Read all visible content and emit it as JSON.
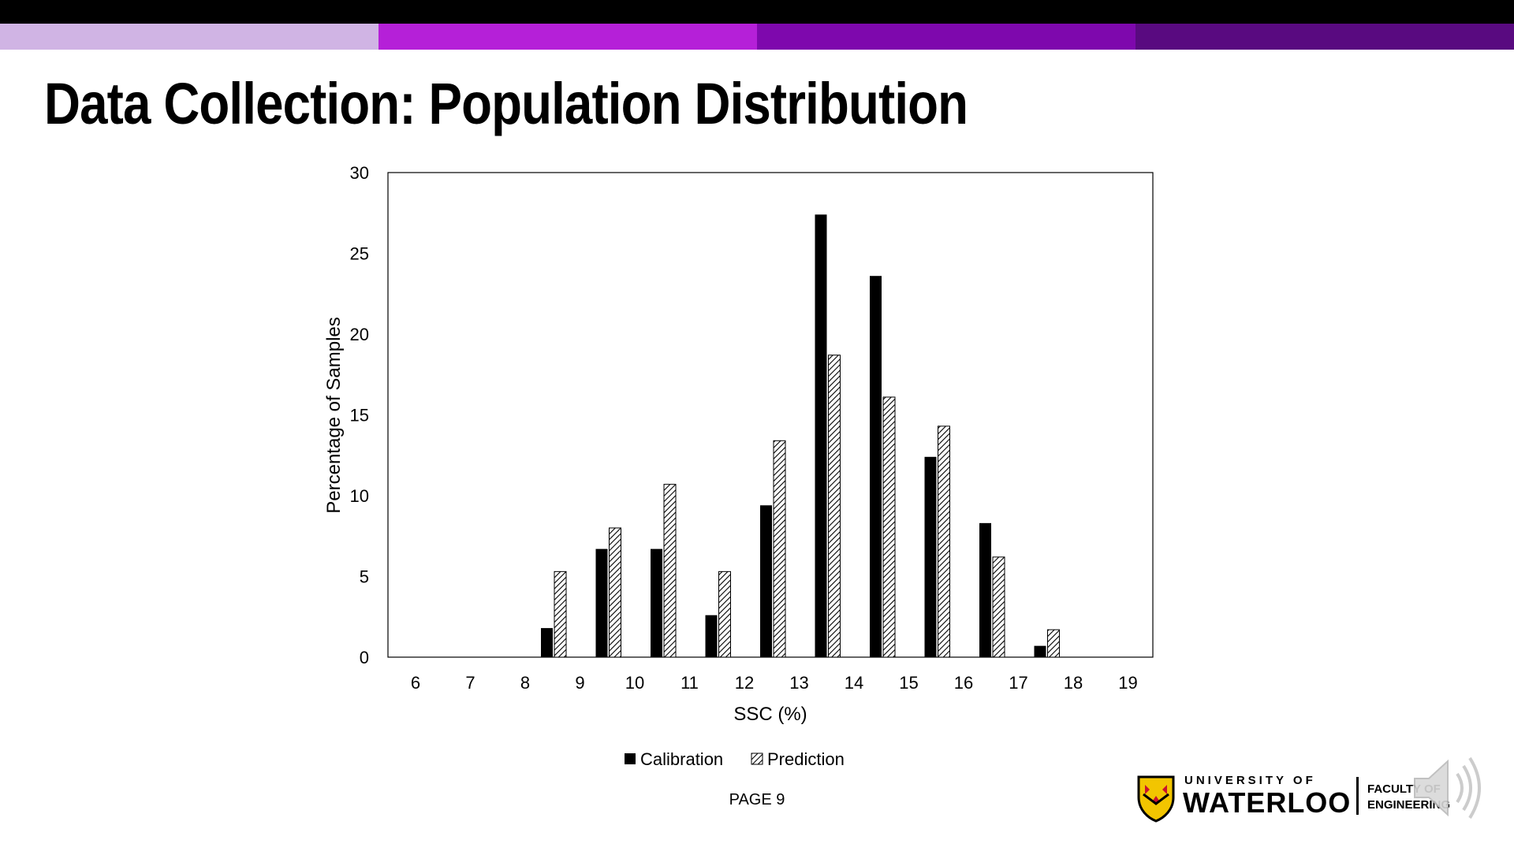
{
  "slide": {
    "title": "Data Collection: Population Distribution",
    "page_label": "PAGE  9",
    "stripe_colors": [
      "#d0b4e4",
      "#b520d8",
      "#7e08ad",
      "#590a80"
    ]
  },
  "logo": {
    "university_of": "UNIVERSITY OF",
    "university_name": "WATERLOO",
    "faculty_line1": "FACULTY OF",
    "faculty_line2": "ENGINEERING"
  },
  "icons": [
    "waterloo-crest-icon",
    "speaker-icon"
  ],
  "chart_data": {
    "type": "bar",
    "xlabel": "SSC (%)",
    "ylabel": "Percentage of Samples",
    "categories": [
      "6",
      "7",
      "8",
      "9",
      "10",
      "11",
      "12",
      "13",
      "14",
      "15",
      "16",
      "17",
      "18",
      "19"
    ],
    "ylim": [
      0,
      30
    ],
    "yticks": [
      "0",
      "5",
      "10",
      "15",
      "20",
      "25",
      "30"
    ],
    "grid": false,
    "legend_position": "bottom",
    "series": [
      {
        "name": "Calibration",
        "fill": "solid",
        "color": "#000000",
        "values": [
          0,
          0,
          1.8,
          6.7,
          6.7,
          2.6,
          9.4,
          27.4,
          23.6,
          12.4,
          8.3,
          0.7,
          0,
          0
        ]
      },
      {
        "name": "Prediction",
        "fill": "hatched",
        "color": "#000000",
        "values": [
          0,
          0,
          5.3,
          8.0,
          10.7,
          5.3,
          13.4,
          18.7,
          16.1,
          14.3,
          6.2,
          1.7,
          0,
          0
        ]
      }
    ]
  }
}
